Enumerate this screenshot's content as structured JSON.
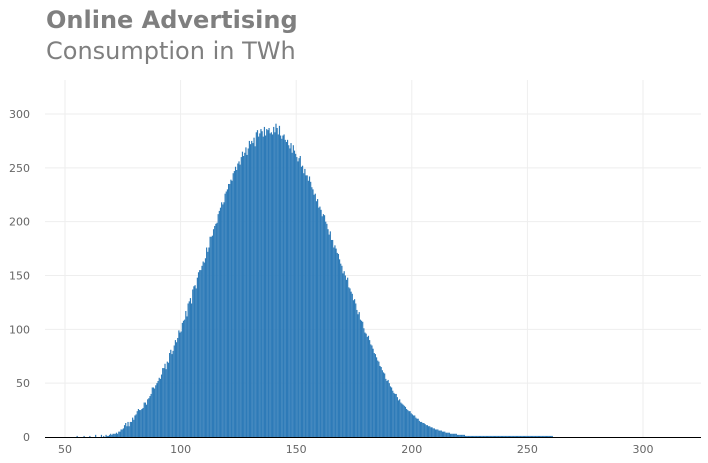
{
  "chart_data": {
    "type": "bar",
    "title": "Online Advertising",
    "subtitle": "Consumption in TWh",
    "xlabel": "",
    "ylabel": "",
    "xlim": [
      45,
      325
    ],
    "ylim": [
      0,
      330
    ],
    "x_ticks": [
      50,
      100,
      150,
      200,
      250,
      300
    ],
    "y_ticks": [
      0,
      50,
      100,
      150,
      200,
      250,
      300
    ],
    "grid": true,
    "bar_color": "#2e7bb8",
    "bin_width": 0.5,
    "bins_start": 55,
    "values": [
      1,
      0,
      0,
      0,
      0,
      0,
      1,
      0,
      0,
      0,
      0,
      1,
      0,
      0,
      0,
      0,
      2,
      0,
      0,
      0,
      0,
      2,
      0,
      1,
      0,
      2,
      1,
      1,
      2,
      3,
      2,
      3,
      3,
      3,
      4,
      3,
      5,
      5,
      7,
      7,
      8,
      11,
      13,
      10,
      14,
      10,
      14,
      14,
      18,
      16,
      20,
      21,
      24,
      26,
      25,
      25,
      26,
      27,
      32,
      32,
      30,
      35,
      36,
      38,
      40,
      46,
      46,
      45,
      48,
      50,
      52,
      55,
      54,
      58,
      64,
      64,
      68,
      63,
      70,
      69,
      78,
      81,
      77,
      80,
      85,
      90,
      88,
      92,
      99,
      97,
      98,
      106,
      108,
      109,
      117,
      112,
      124,
      126,
      129,
      124,
      137,
      140,
      141,
      138,
      148,
      153,
      155,
      155,
      159,
      163,
      162,
      166,
      176,
      172,
      176,
      186,
      186,
      187,
      193,
      196,
      198,
      199,
      207,
      210,
      213,
      218,
      216,
      218,
      226,
      228,
      230,
      235,
      235,
      239,
      238,
      245,
      247,
      251,
      248,
      254,
      256,
      253,
      260,
      265,
      261,
      264,
      269,
      262,
      268,
      275,
      272,
      275,
      273,
      278,
      270,
      283,
      285,
      279,
      282,
      286,
      284,
      279,
      288,
      280,
      286,
      285,
      287,
      282,
      283,
      281,
      288,
      283,
      291,
      287,
      281,
      289,
      280,
      277,
      280,
      281,
      276,
      274,
      276,
      271,
      268,
      273,
      264,
      271,
      266,
      263,
      260,
      256,
      259,
      261,
      251,
      252,
      245,
      249,
      243,
      243,
      238,
      242,
      237,
      232,
      230,
      225,
      226,
      219,
      221,
      213,
      214,
      211,
      205,
      207,
      206,
      200,
      198,
      193,
      188,
      191,
      183,
      183,
      176,
      178,
      175,
      171,
      170,
      165,
      161,
      159,
      152,
      154,
      150,
      146,
      148,
      139,
      138,
      135,
      133,
      127,
      128,
      124,
      118,
      114,
      116,
      109,
      108,
      107,
      101,
      97,
      96,
      93,
      94,
      90,
      86,
      85,
      82,
      78,
      77,
      74,
      71,
      70,
      66,
      65,
      62,
      60,
      59,
      54,
      52,
      53,
      50,
      47,
      46,
      43,
      41,
      40,
      40,
      37,
      34,
      35,
      32,
      31,
      30,
      29,
      28,
      26,
      25,
      24,
      24,
      22,
      21,
      20,
      20,
      18,
      17,
      17,
      15,
      14,
      14,
      13,
      13,
      12,
      11,
      11,
      10,
      10,
      9,
      9,
      8,
      8,
      7,
      7,
      7,
      6,
      6,
      6,
      5,
      5,
      5,
      4,
      4,
      4,
      4,
      3,
      3,
      3,
      3,
      3,
      3,
      2,
      2,
      2,
      2,
      2,
      2,
      2,
      1,
      1,
      1,
      1,
      1,
      1,
      1,
      1,
      1,
      1,
      1,
      1,
      1,
      1,
      1,
      1,
      1,
      1,
      1,
      1,
      1,
      1,
      1,
      1,
      1,
      1,
      1,
      1,
      1,
      1,
      1,
      1,
      1,
      1,
      1,
      1,
      1,
      1,
      1,
      1,
      1,
      1,
      1,
      1,
      1,
      1,
      1,
      1,
      1,
      1,
      1,
      1,
      1,
      1,
      1,
      1,
      1,
      1,
      1,
      1,
      1,
      1,
      1,
      1,
      1,
      1,
      1,
      1,
      1,
      1,
      1,
      1,
      1,
      1,
      1,
      1,
      0,
      0,
      0,
      0,
      0,
      0,
      0,
      0,
      0,
      0,
      0,
      0,
      0,
      0,
      0,
      0,
      0,
      0,
      0,
      0,
      0,
      0,
      0,
      0,
      0,
      0,
      0,
      0,
      0,
      0,
      0,
      0,
      0,
      0,
      0,
      0,
      0,
      0,
      0,
      0,
      0,
      0,
      0,
      0,
      0,
      0,
      0,
      0,
      0,
      0,
      0,
      0,
      0,
      0,
      0,
      0,
      0,
      0,
      0,
      0,
      0,
      0,
      0,
      0,
      0,
      0,
      0,
      0,
      0,
      0,
      0,
      0,
      0,
      0,
      0,
      0,
      0,
      0,
      0,
      0,
      0,
      0,
      0,
      0,
      0,
      0,
      0,
      0,
      0,
      0,
      0,
      0,
      0,
      0,
      0,
      0,
      0,
      0,
      0,
      0,
      0,
      0,
      0,
      0,
      0,
      0,
      0,
      0,
      0,
      0,
      0,
      0,
      0,
      0,
      0,
      0,
      0,
      0,
      0,
      0,
      0,
      0,
      0,
      0,
      0,
      0,
      0,
      0,
      0,
      0,
      0,
      0,
      0,
      0,
      0,
      0,
      0,
      0,
      0,
      0,
      0,
      0,
      0,
      0,
      0,
      0,
      0,
      0,
      0,
      0,
      0,
      0,
      0,
      0,
      0,
      0,
      0,
      0,
      0,
      0,
      0
    ]
  }
}
